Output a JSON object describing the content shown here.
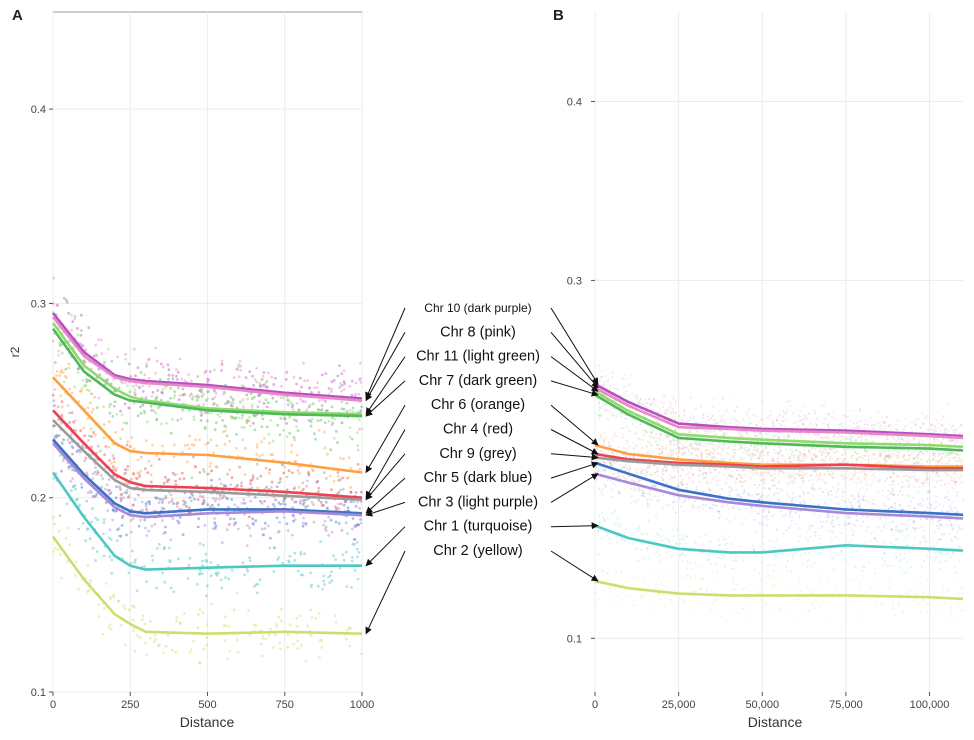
{
  "panels": {
    "a_label": "A",
    "b_label": "B"
  },
  "chart_data": [
    {
      "type": "scatter",
      "panel": "A",
      "xlabel": "Distance",
      "ylabel": "r2",
      "xlim": [
        0,
        1000
      ],
      "ylim": [
        0.1,
        0.45
      ],
      "xticks": [
        "0",
        "250",
        "500",
        "750",
        "1000"
      ],
      "xtick_values": [
        0,
        250,
        500,
        750,
        1000
      ],
      "yticks": [
        "0.1",
        "0.2",
        "0.3",
        "0.4"
      ],
      "ytick_values": [
        0.1,
        0.2,
        0.3,
        0.4
      ],
      "grid": true,
      "x": [
        0,
        100,
        200,
        250,
        300,
        500,
        750,
        1000
      ],
      "series": [
        {
          "name": "Chr 10 (dark purple)",
          "color": "#b84fc0",
          "values": [
            0.295,
            0.275,
            0.263,
            0.261,
            0.26,
            0.258,
            0.254,
            0.251
          ]
        },
        {
          "name": "Chr 8 (pink)",
          "color": "#e888c8",
          "values": [
            0.293,
            0.273,
            0.262,
            0.26,
            0.259,
            0.257,
            0.253,
            0.25
          ]
        },
        {
          "name": "Chr 11 (light green)",
          "color": "#8fdc6a",
          "values": [
            0.29,
            0.268,
            0.256,
            0.252,
            0.25,
            0.246,
            0.244,
            0.243
          ]
        },
        {
          "name": "Chr 7 (dark green)",
          "color": "#4fb85a",
          "values": [
            0.287,
            0.265,
            0.253,
            0.25,
            0.249,
            0.245,
            0.243,
            0.242
          ]
        },
        {
          "name": "Chr 6 (orange)",
          "color": "#ffa040",
          "values": [
            0.262,
            0.245,
            0.228,
            0.224,
            0.223,
            0.222,
            0.218,
            0.213
          ]
        },
        {
          "name": "Chr 4 (red)",
          "color": "#f04050",
          "values": [
            0.245,
            0.228,
            0.212,
            0.208,
            0.206,
            0.205,
            0.203,
            0.2
          ]
        },
        {
          "name": "Chr 9 (grey)",
          "color": "#9a9a9a",
          "values": [
            0.24,
            0.224,
            0.209,
            0.205,
            0.204,
            0.203,
            0.201,
            0.199
          ]
        },
        {
          "name": "Chr 5 (dark blue)",
          "color": "#3a72c8",
          "values": [
            0.23,
            0.212,
            0.197,
            0.193,
            0.192,
            0.194,
            0.194,
            0.192
          ]
        },
        {
          "name": "Chr 3 (light purple)",
          "color": "#a888d8",
          "values": [
            0.228,
            0.21,
            0.195,
            0.191,
            0.19,
            0.192,
            0.193,
            0.191
          ]
        },
        {
          "name": "Chr 1 (turquoise)",
          "color": "#4cc8c0",
          "values": [
            0.213,
            0.19,
            0.17,
            0.165,
            0.163,
            0.164,
            0.165,
            0.165
          ]
        },
        {
          "name": "Chr 2 (yellow)",
          "color": "#c8e070",
          "values": [
            0.18,
            0.158,
            0.14,
            0.135,
            0.131,
            0.13,
            0.131,
            0.13
          ]
        }
      ]
    },
    {
      "type": "scatter",
      "panel": "B",
      "xlabel": "Distance",
      "ylabel": "",
      "xlim": [
        0,
        110000
      ],
      "ylim": [
        0.07,
        0.45
      ],
      "xticks": [
        "0",
        "25,000",
        "50,000",
        "75,000",
        "100,000"
      ],
      "xtick_values": [
        0,
        25000,
        50000,
        75000,
        100000
      ],
      "yticks": [
        "0.1",
        "0.3",
        "0.4"
      ],
      "ytick_values": [
        0.1,
        0.3,
        0.4
      ],
      "grid": true,
      "x": [
        0,
        10000,
        25000,
        40000,
        50000,
        75000,
        100000,
        110000
      ],
      "series": [
        {
          "name": "Chr 10 (dark purple)",
          "color": "#b84fc0",
          "values": [
            0.242,
            0.232,
            0.22,
            0.218,
            0.217,
            0.216,
            0.214,
            0.213
          ]
        },
        {
          "name": "Chr 8 (pink)",
          "color": "#e888c8",
          "values": [
            0.24,
            0.23,
            0.218,
            0.217,
            0.216,
            0.215,
            0.213,
            0.212
          ]
        },
        {
          "name": "Chr 11 (light green)",
          "color": "#8fdc6a",
          "values": [
            0.238,
            0.227,
            0.214,
            0.212,
            0.211,
            0.209,
            0.208,
            0.207
          ]
        },
        {
          "name": "Chr 7 (dark green)",
          "color": "#4fb85a",
          "values": [
            0.236,
            0.225,
            0.212,
            0.21,
            0.209,
            0.207,
            0.206,
            0.205
          ]
        },
        {
          "name": "Chr 6 (orange)",
          "color": "#ffa040",
          "values": [
            0.208,
            0.203,
            0.2,
            0.198,
            0.197,
            0.197,
            0.196,
            0.196
          ]
        },
        {
          "name": "Chr 4 (red)",
          "color": "#f04050",
          "values": [
            0.203,
            0.2,
            0.198,
            0.197,
            0.196,
            0.197,
            0.195,
            0.195
          ]
        },
        {
          "name": "Chr 9 (grey)",
          "color": "#9a9a9a",
          "values": [
            0.201,
            0.199,
            0.197,
            0.196,
            0.195,
            0.195,
            0.194,
            0.194
          ]
        },
        {
          "name": "Chr 5 (dark blue)",
          "color": "#3a72c8",
          "values": [
            0.198,
            0.192,
            0.183,
            0.178,
            0.176,
            0.172,
            0.17,
            0.169
          ]
        },
        {
          "name": "Chr 3 (light purple)",
          "color": "#a888d8",
          "values": [
            0.192,
            0.187,
            0.18,
            0.176,
            0.174,
            0.17,
            0.168,
            0.167
          ]
        },
        {
          "name": "Chr 1 (turquoise)",
          "color": "#4cc8c0",
          "values": [
            0.163,
            0.156,
            0.15,
            0.148,
            0.148,
            0.152,
            0.15,
            0.149
          ]
        },
        {
          "name": "Chr 2 (yellow)",
          "color": "#c8e070",
          "values": [
            0.132,
            0.128,
            0.125,
            0.124,
            0.124,
            0.124,
            0.123,
            0.122
          ]
        }
      ]
    }
  ]
}
